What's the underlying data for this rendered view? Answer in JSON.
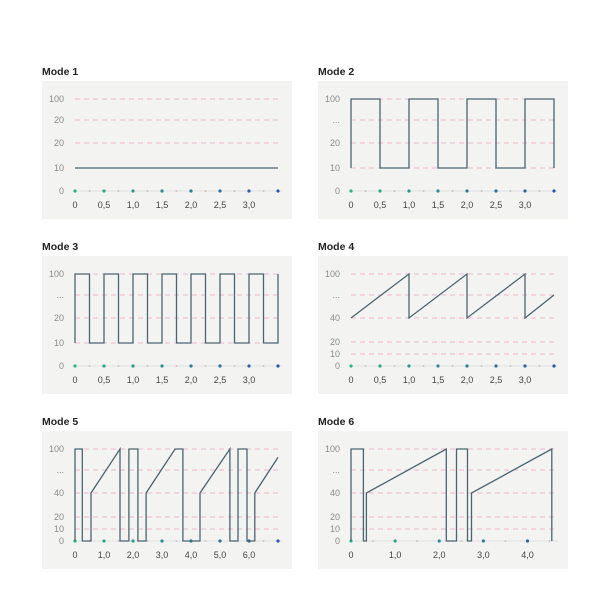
{
  "style": {
    "line_color": "#4a6572",
    "grid_color": "#f2b6cf",
    "panel_bg": "#f3f3f2",
    "dot_start": "#2bb57f",
    "dot_end": "#2a55b0",
    "minor_dot": "#c8c8c8"
  },
  "chart_data": [
    {
      "type": "line",
      "title": "Mode 1",
      "y_axis": "ordinal",
      "ytick_labels": [
        "0",
        "10",
        "20",
        "20",
        "100"
      ],
      "xlim": [
        0,
        3.5
      ],
      "xticks": [
        0,
        0.5,
        1.0,
        1.5,
        2.0,
        2.5,
        3.0
      ],
      "xtick_labels": [
        "0",
        "0,5",
        "1,0",
        "1,5",
        "2,0",
        "2,5",
        "3,0"
      ],
      "dot_step": 0.5,
      "grid": true,
      "series": [
        {
          "points": [
            [
              0,
              1
            ],
            [
              3.5,
              1
            ]
          ]
        }
      ]
    },
    {
      "type": "line",
      "title": "Mode 2",
      "y_axis": "ordinal",
      "ytick_labels": [
        "0",
        "10",
        "20",
        "...",
        "100"
      ],
      "xlim": [
        0,
        3.5
      ],
      "xticks": [
        0,
        0.5,
        1.0,
        1.5,
        2.0,
        2.5,
        3.0
      ],
      "xtick_labels": [
        "0",
        "0,5",
        "1,0",
        "1,5",
        "2,0",
        "2,5",
        "3,0"
      ],
      "dot_step": 0.5,
      "grid": true,
      "series": [
        {
          "points": [
            [
              0,
              1
            ],
            [
              0,
              4
            ],
            [
              0.5,
              4
            ],
            [
              0.5,
              1
            ],
            [
              1,
              1
            ],
            [
              1,
              4
            ],
            [
              1.5,
              4
            ],
            [
              1.5,
              1
            ],
            [
              2,
              1
            ],
            [
              2,
              4
            ],
            [
              2.5,
              4
            ],
            [
              2.5,
              1
            ],
            [
              3,
              1
            ],
            [
              3,
              4
            ],
            [
              3.5,
              4
            ],
            [
              3.5,
              1
            ]
          ]
        }
      ]
    },
    {
      "type": "line",
      "title": "Mode 3",
      "y_axis": "ordinal",
      "ytick_labels": [
        "0",
        "10",
        "20",
        "...",
        "100"
      ],
      "xlim": [
        0,
        3.5
      ],
      "xticks": [
        0,
        0.5,
        1.0,
        1.5,
        2.0,
        2.5,
        3.0
      ],
      "xtick_labels": [
        "0",
        "0,5",
        "1,0",
        "1,5",
        "2,0",
        "2,5",
        "3,0"
      ],
      "dot_step": 0.5,
      "grid": true,
      "series": [
        {
          "points": [
            [
              0,
              1
            ],
            [
              0,
              4
            ],
            [
              0.25,
              4
            ],
            [
              0.25,
              1
            ],
            [
              0.5,
              1
            ],
            [
              0.5,
              4
            ],
            [
              0.75,
              4
            ],
            [
              0.75,
              1
            ],
            [
              1,
              1
            ],
            [
              1,
              4
            ],
            [
              1.25,
              4
            ],
            [
              1.25,
              1
            ],
            [
              1.5,
              1
            ],
            [
              1.5,
              4
            ],
            [
              1.75,
              4
            ],
            [
              1.75,
              1
            ],
            [
              2,
              1
            ],
            [
              2,
              4
            ],
            [
              2.25,
              4
            ],
            [
              2.25,
              1
            ],
            [
              2.5,
              1
            ],
            [
              2.5,
              4
            ],
            [
              2.75,
              4
            ],
            [
              2.75,
              1
            ],
            [
              3,
              1
            ],
            [
              3,
              4
            ],
            [
              3.25,
              4
            ],
            [
              3.25,
              1
            ],
            [
              3.5,
              1
            ],
            [
              3.5,
              4
            ]
          ]
        }
      ]
    },
    {
      "type": "line",
      "title": "Mode 4",
      "y_axis": "ordinal",
      "ytick_labels": [
        "0",
        "10",
        "20",
        "40",
        "...",
        "100"
      ],
      "xlim": [
        0,
        3.5
      ],
      "xticks": [
        0,
        0.5,
        1.0,
        1.5,
        2.0,
        2.5,
        3.0
      ],
      "xtick_labels": [
        "0",
        "0,5",
        "1,0",
        "1,5",
        "2,0",
        "2,5",
        "3,0"
      ],
      "dot_step": 0.5,
      "grid": true,
      "series": [
        {
          "points": [
            [
              0,
              3
            ],
            [
              1,
              5
            ],
            [
              1,
              3
            ],
            [
              2,
              5
            ],
            [
              2,
              3
            ],
            [
              3,
              5
            ],
            [
              3,
              3
            ],
            [
              3.5,
              4
            ]
          ]
        }
      ]
    },
    {
      "type": "line",
      "title": "Mode 5",
      "y_axis": "ordinal",
      "ytick_labels": [
        "0",
        "10",
        "20",
        "40",
        "...",
        "100"
      ],
      "xlim": [
        0,
        7
      ],
      "xticks": [
        0,
        1,
        2,
        3,
        4,
        5,
        6
      ],
      "xtick_labels": [
        "0",
        "1,0",
        "2,0",
        "3,0",
        "4,0",
        "5,0",
        "6,0"
      ],
      "dot_step": 1,
      "grid": true,
      "series": [
        {
          "points": [
            [
              0,
              0
            ],
            [
              0,
              5
            ],
            [
              0.25,
              5
            ],
            [
              0.25,
              0
            ],
            [
              0.55,
              0
            ],
            [
              0.55,
              3
            ],
            [
              1.55,
              5
            ],
            [
              1.55,
              0
            ],
            [
              1.86,
              0
            ],
            [
              1.86,
              5
            ],
            [
              2.17,
              5
            ],
            [
              2.17,
              0
            ],
            [
              2.45,
              0
            ],
            [
              2.45,
              3
            ],
            [
              3.45,
              5
            ],
            [
              3.72,
              5
            ],
            [
              3.72,
              0
            ],
            [
              4.31,
              0
            ],
            [
              4.31,
              3
            ],
            [
              5.34,
              5
            ],
            [
              5.34,
              0
            ],
            [
              5.62,
              0
            ],
            [
              5.62,
              5
            ],
            [
              5.93,
              5
            ],
            [
              5.93,
              0
            ],
            [
              6.2,
              0
            ],
            [
              6.2,
              3
            ],
            [
              7,
              4.6
            ]
          ]
        }
      ]
    },
    {
      "type": "line",
      "title": "Mode 6",
      "y_axis": "ordinal",
      "ytick_labels": [
        "0",
        "10",
        "20",
        "40",
        "...",
        "100"
      ],
      "xlim": [
        0,
        4.6
      ],
      "xticks": [
        0,
        1,
        2,
        3,
        4
      ],
      "xtick_labels": [
        "0",
        "1,0",
        "2,0",
        "3,0",
        "4,0"
      ],
      "dot_step": 1,
      "grid": true,
      "series": [
        {
          "points": [
            [
              0,
              0
            ],
            [
              0,
              5
            ],
            [
              0.28,
              5
            ],
            [
              0.28,
              0
            ],
            [
              0.35,
              0
            ],
            [
              0.35,
              3
            ],
            [
              2.16,
              5
            ],
            [
              2.16,
              0
            ],
            [
              2.39,
              0
            ],
            [
              2.39,
              5
            ],
            [
              2.64,
              5
            ],
            [
              2.64,
              0
            ],
            [
              2.73,
              0
            ],
            [
              2.73,
              3
            ],
            [
              4.55,
              5
            ],
            [
              4.55,
              0
            ]
          ]
        }
      ]
    }
  ]
}
